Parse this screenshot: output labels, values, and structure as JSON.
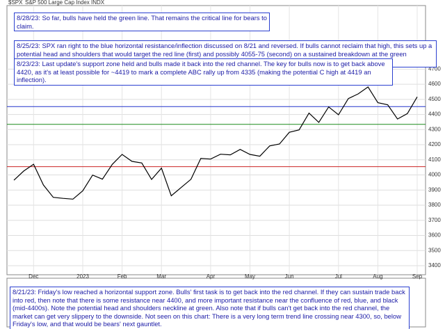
{
  "header": {
    "symbol": "$SPX",
    "name": "S&P 500 Large Cap Index INDX"
  },
  "annotations": [
    "8/28/23:  So far, bulls have held the green line.  That remains the critical line for bears to claim.",
    "8/25/23:  SPX ran right to the blue horizontal resistance/inflection discussed on 8/21 and reversed.  If bulls cannot reclaim that high, this sets up a potential head and shoulders that would target the red line (first) and possibly 4055-75 (second) on a sustained breakdown at the green neckline.",
    "8/23/23:  Last update's support zone held and bulls made it back into the red channel.  The key for bulls now is to get back above 4420, as it's at least possible for ~4419 to mark a complete ABC rally up from 4335 (making the potential C high at 4419 an inflection).",
    "8/21/23:  Friday's low reached a horizontal support zone.  Bulls' first task is to get back into the red channel.  If they can sustain trade back into red, then note that there is some resistance near 4400, and more important resistance near the confluence of red, blue, and black (mid-4400s).  Note the potential head and shoulders neckline at green.  Also note that if bulls can't get back into the red channel, the market can get very slippery to the downside.  Not seen on this chart:  There is a very long term trend line crossing near 4300, so, below Friday's low, and that would be bears' next gauntlet."
  ],
  "chart_data": {
    "type": "line",
    "color": "#000000",
    "categories": [
      null,
      null,
      "Dec",
      null,
      null,
      null,
      null,
      "2023",
      null,
      null,
      null,
      "Feb",
      null,
      null,
      null,
      "Mar",
      null,
      null,
      null,
      null,
      "Apr",
      null,
      null,
      null,
      "May",
      null,
      null,
      null,
      "Jun",
      null,
      null,
      null,
      null,
      "Jul",
      null,
      null,
      null,
      "Aug",
      null,
      null,
      null,
      "Sep"
    ],
    "values": [
      3965,
      4026,
      4071,
      3934,
      3852,
      3845,
      3840,
      3895,
      3999,
      3972,
      4070,
      4136,
      4090,
      4079,
      3970,
      4045,
      3862,
      3917,
      3971,
      4109,
      4105,
      4137,
      4133,
      4169,
      4136,
      4124,
      4192,
      4205,
      4282,
      4298,
      4409,
      4348,
      4450,
      4398,
      4505,
      4536,
      4582,
      4478,
      4464,
      4370,
      4406,
      4516
    ],
    "ylim": [
      3340,
      4720
    ],
    "yticks": [
      3400,
      3500,
      3600,
      3700,
      3800,
      3900,
      4000,
      4100,
      4200,
      4300,
      4400,
      4500,
      4600,
      4700
    ],
    "grid": true,
    "reference_lines": [
      {
        "value": 4452,
        "color": "#2233cc"
      },
      {
        "value": 4335,
        "color": "#1a8a1a"
      },
      {
        "value": 4055,
        "color": "#cc2222"
      }
    ]
  }
}
